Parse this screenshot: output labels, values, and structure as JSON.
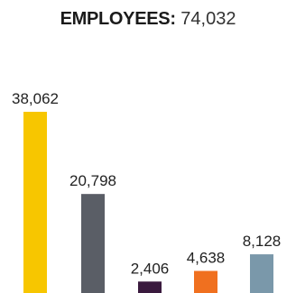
{
  "header": {
    "label": "EMPLOYEES:",
    "total": "74,032"
  },
  "chart_data": {
    "type": "bar",
    "title": "EMPLOYEES: 74,032",
    "categories": [
      "",
      "",
      "",
      "",
      ""
    ],
    "values": [
      38062,
      20798,
      2406,
      4638,
      8128
    ],
    "value_labels": [
      "38,062",
      "20,798",
      "2,406",
      "4,638",
      "8,128"
    ],
    "colors": [
      "#f7c600",
      "#5a5e66",
      "#3a1a3e",
      "#f0701f",
      "#7a98aa"
    ],
    "ylim": [
      0,
      38062
    ],
    "grid": false,
    "legend": "none"
  }
}
